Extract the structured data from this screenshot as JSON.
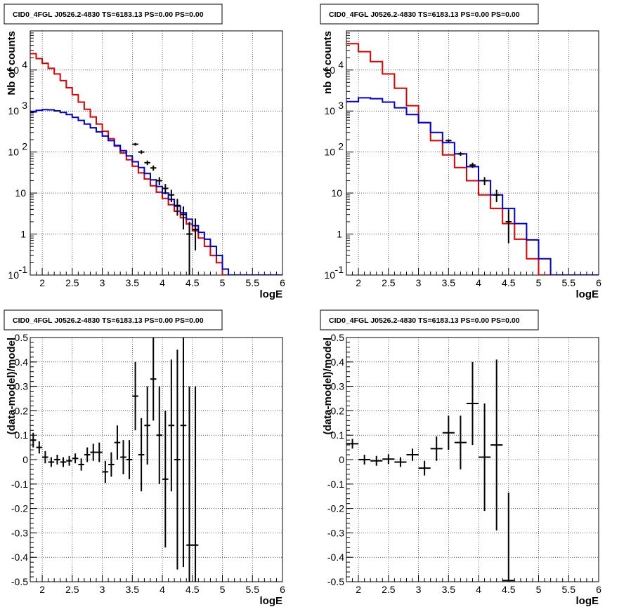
{
  "chart_data": [
    {
      "type": "line",
      "title": "CID0_4FGL J0526.2-4830 TS=6183.13 PS=0.00 PS=0.00",
      "xlabel": "logE",
      "ylabel": "Nb of counts",
      "xlim": [
        1.8,
        6.0
      ],
      "ylim": [
        0.1,
        90000
      ],
      "yscale": "log",
      "grid": true,
      "x_ticks": [
        "2",
        "2.5",
        "3",
        "3.5",
        "4",
        "4.5",
        "5",
        "5.5",
        "6"
      ],
      "y_ticks": [
        "10^-1",
        "1",
        "10",
        "10^2",
        "10^3",
        "10^4"
      ],
      "bin_edges": [
        1.8,
        1.9,
        2.0,
        2.1,
        2.2,
        2.3,
        2.4,
        2.5,
        2.6,
        2.7,
        2.8,
        2.9,
        3.0,
        3.1,
        3.2,
        3.3,
        3.4,
        3.5,
        3.6,
        3.7,
        3.8,
        3.9,
        4.0,
        4.1,
        4.2,
        4.3,
        4.4,
        4.5,
        4.6,
        4.7,
        4.8,
        4.9,
        5.0,
        5.1,
        5.2,
        5.3,
        5.4,
        5.5,
        5.6,
        5.7,
        5.8,
        5.9,
        6.0
      ],
      "series": [
        {
          "color": "#e00000",
          "style": "step",
          "values": [
            25000,
            19000,
            14500,
            11000,
            8000,
            5500,
            3700,
            2500,
            1650,
            1100,
            720,
            480,
            320,
            210,
            140,
            95,
            65,
            45,
            31,
            22,
            15,
            10.5,
            7.4,
            5.2,
            3.6,
            2.5,
            1.75,
            1.2,
            0.8,
            0.5,
            0.3,
            0.2,
            0.1,
            0.08,
            0.08,
            0.08,
            0.08,
            0.08,
            0.08,
            0.08,
            0.08,
            0.08
          ]
        },
        {
          "color": "#0000d0",
          "style": "step",
          "values": [
            950,
            1040,
            1080,
            1070,
            1010,
            920,
            820,
            700,
            590,
            480,
            390,
            310,
            245,
            190,
            145,
            108,
            80,
            58,
            42,
            30,
            21,
            14.5,
            10,
            7,
            4.8,
            3.3,
            2.3,
            1.6,
            1.1,
            0.75,
            0.5,
            0.3,
            0.14,
            0.08,
            0.08,
            0.08,
            0.08,
            0.08,
            0.08,
            0.08,
            0.08,
            0.08
          ]
        },
        {
          "color": "#000000",
          "style": "errorbar",
          "x": [
            3.55,
            3.65,
            3.75,
            3.85,
            3.95,
            4.05,
            4.15,
            4.25,
            4.35,
            4.45,
            4.55
          ],
          "y": [
            155,
            100,
            55,
            41,
            20,
            13,
            9,
            5,
            3,
            1,
            1.3
          ],
          "yerr_lo": [
            12,
            10,
            7,
            6,
            4.5,
            3.6,
            3,
            2.2,
            1.7,
            0.95,
            0.9
          ],
          "yerr_hi": [
            12,
            10,
            7,
            6,
            4.5,
            3.6,
            3,
            2.2,
            1.7,
            1,
            1.1
          ]
        }
      ]
    },
    {
      "type": "line",
      "title": "CID0_4FGL J0526.2-4830 TS=6183.13 PS=0.00 PS=0.00",
      "xlabel": "logE",
      "ylabel": "nb of counts",
      "xlim": [
        1.8,
        6.0
      ],
      "ylim": [
        0.1,
        90000
      ],
      "yscale": "log",
      "grid": true,
      "x_ticks": [
        "2",
        "2.5",
        "3",
        "3.5",
        "4",
        "4.5",
        "5",
        "5.5",
        "6"
      ],
      "y_ticks": [
        "10^-1",
        "1",
        "10",
        "10^2",
        "10^3",
        "10^4"
      ],
      "bin_edges": [
        1.8,
        2.0,
        2.2,
        2.4,
        2.6,
        2.8,
        3.0,
        3.2,
        3.4,
        3.6,
        3.8,
        4.0,
        4.2,
        4.4,
        4.6,
        4.8,
        5.0,
        5.2,
        5.4,
        5.6,
        5.8,
        6.0
      ],
      "series": [
        {
          "color": "#e00000",
          "style": "step",
          "values": [
            44000,
            28000,
            16000,
            8000,
            3600,
            1350,
            520,
            190,
            85,
            42,
            20,
            9,
            4.2,
            1.8,
            0.75,
            0.25,
            0.1,
            0.08,
            0.08,
            0.08,
            0.08
          ]
        },
        {
          "color": "#0000d0",
          "style": "step",
          "values": [
            1700,
            2100,
            2000,
            1650,
            1200,
            820,
            520,
            300,
            170,
            90,
            44,
            20,
            9,
            4.2,
            1.8,
            0.72,
            0.25,
            0.1,
            0.1,
            0.1,
            0.1
          ]
        },
        {
          "color": "#000000",
          "style": "errorbar",
          "x": [
            3.5,
            3.7,
            3.9,
            4.1,
            4.3,
            4.5
          ],
          "y": [
            190,
            90,
            48,
            20,
            9,
            2
          ],
          "yerr_lo": [
            14,
            9.5,
            7,
            4.5,
            3,
            1.4
          ],
          "yerr_hi": [
            14,
            9.5,
            7,
            4.5,
            3,
            2
          ]
        }
      ]
    },
    {
      "type": "scatter",
      "title": "CID0_4FGL J0526.2-4830 TS=6183.13 PS=0.00 PS=0.00",
      "xlabel": "logE",
      "ylabel": "(data-model)/model",
      "xlim": [
        1.8,
        6.0
      ],
      "ylim": [
        -0.5,
        0.5
      ],
      "grid": true,
      "x_ticks": [
        "2",
        "2.5",
        "3",
        "3.5",
        "4",
        "4.5",
        "5",
        "5.5",
        "6"
      ],
      "y_ticks": [
        "-0.5",
        "-0.4",
        "-0.3",
        "-0.2",
        "-0.1",
        "0",
        "0.1",
        "0.2",
        "0.3",
        "0.4",
        "0.5"
      ],
      "series": [
        {
          "color": "#000000",
          "style": "errorbar",
          "xerr": 0.05,
          "x": [
            1.85,
            1.95,
            2.05,
            2.15,
            2.25,
            2.35,
            2.45,
            2.55,
            2.65,
            2.75,
            2.85,
            2.95,
            3.05,
            3.15,
            3.25,
            3.35,
            3.45,
            3.55,
            3.65,
            3.75,
            3.85,
            3.95,
            4.05,
            4.15,
            4.25,
            4.35,
            4.45,
            4.55
          ],
          "y": [
            0.08,
            0.05,
            0.01,
            -0.01,
            0.0,
            -0.01,
            -0.005,
            0.005,
            -0.02,
            0.02,
            0.03,
            0.03,
            -0.05,
            -0.02,
            0.07,
            0.01,
            0.0,
            0.26,
            0.02,
            0.14,
            0.33,
            0.1,
            -0.08,
            0.14,
            0.0,
            0.14,
            -0.35,
            -0.35
          ],
          "yerr": [
            0.03,
            0.025,
            0.025,
            0.02,
            0.02,
            0.02,
            0.02,
            0.02,
            0.025,
            0.03,
            0.035,
            0.04,
            0.045,
            0.05,
            0.07,
            0.07,
            0.08,
            0.14,
            0.15,
            0.16,
            0.17,
            0.2,
            0.28,
            0.27,
            0.45,
            0.58,
            0.65,
            0.65
          ]
        }
      ]
    },
    {
      "type": "scatter",
      "title": "CID0_4FGL J0526.2-4830 TS=6183.13 PS=0.00 PS=0.00",
      "xlabel": "logE",
      "ylabel": "(data-model)/model",
      "xlim": [
        1.8,
        6.0
      ],
      "ylim": [
        -0.5,
        0.5
      ],
      "grid": true,
      "x_ticks": [
        "2",
        "2.5",
        "3",
        "3.5",
        "4",
        "4.5",
        "5",
        "5.5",
        "6"
      ],
      "y_ticks": [
        "-0.5",
        "-0.4",
        "-0.3",
        "-0.2",
        "-0.1",
        "0",
        "0.1",
        "0.2",
        "0.3",
        "0.4",
        "0.5"
      ],
      "series": [
        {
          "color": "#000000",
          "style": "errorbar",
          "xerr": 0.1,
          "x": [
            1.9,
            2.1,
            2.3,
            2.5,
            2.7,
            2.9,
            3.1,
            3.3,
            3.5,
            3.7,
            3.9,
            4.1,
            4.3,
            4.5
          ],
          "y": [
            0.065,
            0.0,
            -0.005,
            0.002,
            -0.01,
            0.02,
            -0.035,
            0.045,
            0.11,
            0.07,
            0.23,
            0.01,
            0.06,
            -0.495
          ],
          "yerr": [
            0.02,
            0.02,
            0.02,
            0.02,
            0.02,
            0.025,
            0.03,
            0.05,
            0.07,
            0.11,
            0.17,
            0.22,
            0.35,
            0.36
          ]
        }
      ]
    }
  ]
}
